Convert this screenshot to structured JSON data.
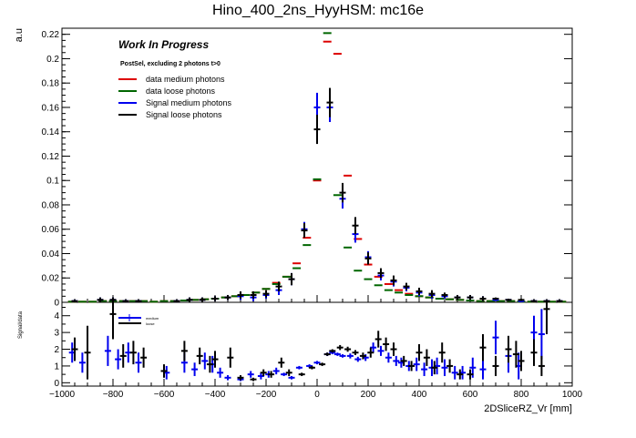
{
  "chart_data": [
    {
      "type": "scatter",
      "title": "Hino_400_2ns_HyyHSM: mc16e",
      "ylabel": "a.u",
      "xlim": [
        -1000,
        1000
      ],
      "ylim": [
        0,
        0.225
      ],
      "yticks": [
        0,
        0.02,
        0.04,
        0.06,
        0.08,
        0.1,
        0.12,
        0.14,
        0.16,
        0.18,
        0.2,
        0.22
      ],
      "ytick_labels": [
        "0",
        "0.02",
        "0.04",
        "0.06",
        "0.08",
        "0.1",
        "0.12",
        "0.14",
        "0.16",
        "0.18",
        "0.2",
        "0.22"
      ],
      "annotations": {
        "work_in_progress": "Work In Progress",
        "selection": "PostSel, excluding 2 photons t>0"
      },
      "legend": {
        "position": "top-left",
        "entries": [
          {
            "label": "data medium photons",
            "color": "#dd0000"
          },
          {
            "label": "data loose photons",
            "color": "#006600"
          },
          {
            "label": "Signal medium photons",
            "color": "#0000ee"
          },
          {
            "label": "Signal loose photons",
            "color": "#000000"
          }
        ]
      },
      "series": [
        {
          "name": "data medium photons",
          "color": "#dd0000",
          "style": "bar",
          "x": [
            -960,
            -920,
            -880,
            -840,
            -800,
            -760,
            -720,
            -680,
            -640,
            -600,
            -560,
            -520,
            -480,
            -440,
            -400,
            -360,
            -320,
            -280,
            -240,
            -200,
            -160,
            -120,
            -80,
            -40,
            0,
            40,
            80,
            120,
            160,
            200,
            240,
            280,
            320,
            360,
            400,
            440,
            480,
            520,
            560,
            600,
            640,
            680,
            720,
            760,
            800,
            840,
            880,
            920,
            960
          ],
          "y": [
            0.0005,
            0.0005,
            0.0005,
            0.001,
            0.001,
            0.001,
            0.001,
            0.001,
            0.0005,
            0.001,
            0.001,
            0.0015,
            0.002,
            0.0025,
            0.003,
            0.004,
            0.005,
            0.006,
            0.008,
            0.011,
            0.016,
            0.021,
            0.032,
            0.053,
            0.1,
            0.214,
            0.204,
            0.104,
            0.052,
            0.031,
            0.021,
            0.015,
            0.01,
            0.007,
            0.005,
            0.004,
            0.003,
            0.0025,
            0.002,
            0.0015,
            0.001,
            0.001,
            0.001,
            0.001,
            0.0005,
            0.0005,
            0.0005,
            0.0005,
            0.0005
          ]
        },
        {
          "name": "data loose photons",
          "color": "#006600",
          "style": "bar",
          "x": [
            -960,
            -920,
            -880,
            -840,
            -800,
            -760,
            -720,
            -680,
            -640,
            -600,
            -560,
            -520,
            -480,
            -440,
            -400,
            -360,
            -320,
            -280,
            -240,
            -200,
            -160,
            -120,
            -80,
            -40,
            0,
            40,
            80,
            120,
            160,
            200,
            240,
            280,
            320,
            360,
            400,
            440,
            480,
            520,
            560,
            600,
            640,
            680,
            720,
            760,
            800,
            840,
            880,
            920,
            960
          ],
          "y": [
            0.0005,
            0.0005,
            0.0005,
            0.001,
            0.001,
            0.001,
            0.001,
            0.001,
            0.0005,
            0.001,
            0.001,
            0.0015,
            0.002,
            0.0025,
            0.003,
            0.004,
            0.005,
            0.006,
            0.008,
            0.011,
            0.015,
            0.021,
            0.028,
            0.047,
            0.101,
            0.221,
            0.088,
            0.045,
            0.026,
            0.019,
            0.014,
            0.01,
            0.008,
            0.006,
            0.005,
            0.004,
            0.003,
            0.0025,
            0.002,
            0.0015,
            0.001,
            0.001,
            0.001,
            0.001,
            0.0005,
            0.0005,
            0.0005,
            0.0005,
            0.0005
          ]
        },
        {
          "name": "Signal medium photons",
          "color": "#0000ee",
          "style": "errorbar",
          "x": [
            -950,
            -850,
            -800,
            -750,
            -700,
            -550,
            -500,
            -450,
            -400,
            -350,
            -300,
            -250,
            -200,
            -150,
            -100,
            -50,
            0,
            50,
            100,
            150,
            200,
            250,
            300,
            350,
            400,
            450,
            500,
            550,
            600,
            650,
            700,
            750,
            800,
            850,
            900,
            950
          ],
          "y": [
            0.001,
            0.002,
            0.002,
            0.001,
            0.001,
            0.001,
            0.002,
            0.002,
            0.003,
            0.004,
            0.005,
            0.004,
            0.006,
            0.01,
            0.019,
            0.06,
            0.16,
            0.16,
            0.085,
            0.056,
            0.037,
            0.022,
            0.017,
            0.012,
            0.008,
            0.006,
            0.005,
            0.004,
            0.004,
            0.003,
            0.002,
            0.002,
            0.001,
            0.001,
            0.001,
            0.001
          ],
          "err": [
            0.001,
            0.002,
            0.002,
            0.001,
            0.001,
            0.001,
            0.002,
            0.002,
            0.002,
            0.002,
            0.003,
            0.003,
            0.003,
            0.004,
            0.005,
            0.006,
            0.012,
            0.012,
            0.008,
            0.007,
            0.005,
            0.004,
            0.004,
            0.003,
            0.003,
            0.003,
            0.002,
            0.002,
            0.002,
            0.002,
            0.001,
            0.001,
            0.001,
            0.001,
            0.001,
            0.001
          ]
        },
        {
          "name": "Signal loose photons",
          "color": "#000000",
          "style": "errorbar",
          "x": [
            -950,
            -850,
            -800,
            -750,
            -700,
            -550,
            -500,
            -450,
            -400,
            -350,
            -300,
            -250,
            -200,
            -150,
            -100,
            -50,
            0,
            50,
            100,
            150,
            200,
            250,
            300,
            350,
            400,
            450,
            500,
            550,
            600,
            650,
            700,
            750,
            800,
            850,
            900,
            950
          ],
          "y": [
            0.001,
            0.002,
            0.002,
            0.001,
            0.001,
            0.001,
            0.002,
            0.002,
            0.003,
            0.004,
            0.006,
            0.006,
            0.007,
            0.013,
            0.019,
            0.059,
            0.142,
            0.164,
            0.09,
            0.063,
            0.036,
            0.024,
            0.018,
            0.013,
            0.009,
            0.007,
            0.006,
            0.004,
            0.004,
            0.003,
            0.003,
            0.002,
            0.002,
            0.001,
            0.001,
            0.001
          ],
          "err": [
            0.001,
            0.002,
            0.002,
            0.001,
            0.001,
            0.001,
            0.002,
            0.002,
            0.002,
            0.002,
            0.003,
            0.003,
            0.003,
            0.004,
            0.005,
            0.006,
            0.012,
            0.012,
            0.008,
            0.007,
            0.005,
            0.004,
            0.004,
            0.003,
            0.003,
            0.003,
            0.002,
            0.002,
            0.002,
            0.002,
            0.001,
            0.001,
            0.001,
            0.001,
            0.001,
            0.001
          ]
        }
      ]
    },
    {
      "type": "scatter",
      "ylabel": "Signal/data",
      "xlabel": "2DSliceRZ_Vr [mm]",
      "xlim": [
        -1000,
        1000
      ],
      "ylim": [
        -0.2,
        4.8
      ],
      "xticks": [
        -1000,
        -800,
        -600,
        -400,
        -200,
        0,
        200,
        400,
        600,
        800,
        1000
      ],
      "xtick_labels": [
        "−1000",
        "−800",
        "−600",
        "−400",
        "−200",
        "0",
        "200",
        "400",
        "600",
        "800",
        "1000"
      ],
      "yticks": [
        0,
        1,
        2,
        3,
        4
      ],
      "ytick_labels": [
        "0",
        "1",
        "2",
        "3",
        "4"
      ],
      "legend": {
        "position": "top-left",
        "entries": [
          {
            "label": "medium",
            "color": "#0000ee"
          },
          {
            "label": "loose",
            "color": "#000000"
          }
        ]
      },
      "series": [
        {
          "name": "medium",
          "color": "#0000ee",
          "x": [
            -960,
            -920,
            -820,
            -780,
            -740,
            -700,
            -590,
            -520,
            -480,
            -440,
            -410,
            -380,
            -350,
            -300,
            -260,
            -220,
            -190,
            -160,
            -130,
            -100,
            -70,
            -30,
            0,
            40,
            60,
            80,
            100,
            130,
            160,
            190,
            220,
            250,
            280,
            310,
            330,
            360,
            390,
            420,
            450,
            470,
            500,
            540,
            570,
            610,
            650,
            700,
            750,
            790,
            850,
            880
          ],
          "y": [
            1.8,
            1.2,
            1.9,
            1.4,
            1.8,
            1.2,
            0.6,
            1.2,
            0.8,
            1.3,
            1.1,
            0.6,
            0.3,
            0.2,
            0.5,
            0.4,
            0.5,
            0.7,
            0.5,
            0.3,
            0.9,
            1.0,
            1.2,
            1.7,
            1.8,
            1.7,
            1.6,
            1.6,
            1.4,
            1.5,
            2.1,
            1.9,
            1.5,
            1.3,
            1.2,
            1.0,
            1.1,
            0.8,
            0.9,
            1.0,
            0.9,
            0.6,
            0.6,
            0.9,
            0.8,
            2.7,
            1.6,
            1.0,
            3.0,
            2.9
          ],
          "err": [
            0.6,
            0.6,
            0.9,
            0.6,
            0.6,
            0.6,
            0.4,
            0.6,
            0.4,
            0.5,
            0.5,
            0.3,
            0.15,
            0.1,
            0.2,
            0.2,
            0.2,
            0.2,
            0.1,
            0.1,
            0.1,
            0.1,
            0.1,
            0.1,
            0.1,
            0.1,
            0.1,
            0.15,
            0.15,
            0.2,
            0.3,
            0.3,
            0.3,
            0.3,
            0.3,
            0.3,
            0.4,
            0.4,
            0.5,
            0.5,
            0.5,
            0.4,
            0.4,
            0.6,
            0.6,
            1.0,
            1.0,
            0.8,
            1.0,
            1.5
          ]
        },
        {
          "name": "loose",
          "color": "#000000",
          "x": [
            -950,
            -900,
            -800,
            -760,
            -720,
            -680,
            -600,
            -520,
            -460,
            -420,
            -400,
            -340,
            -300,
            -250,
            -210,
            -180,
            -140,
            -110,
            -60,
            -20,
            20,
            40,
            60,
            90,
            120,
            150,
            180,
            210,
            240,
            270,
            300,
            340,
            370,
            400,
            430,
            460,
            490,
            520,
            560,
            600,
            650,
            700,
            750,
            780,
            800,
            850,
            880,
            900
          ],
          "y": [
            2.0,
            1.8,
            4.1,
            1.6,
            1.8,
            1.5,
            0.7,
            1.9,
            1.6,
            1.1,
            1.4,
            1.5,
            0.3,
            0.2,
            0.6,
            0.5,
            1.2,
            0.6,
            0.5,
            0.9,
            1.1,
            1.7,
            1.9,
            2.1,
            2.0,
            1.8,
            1.6,
            1.8,
            2.6,
            2.3,
            2.0,
            1.3,
            1.0,
            1.8,
            1.5,
            0.9,
            1.8,
            1.0,
            0.5,
            0.5,
            2.1,
            1.0,
            2.0,
            1.7,
            1.3,
            1.8,
            1.0,
            4.4
          ],
          "err": [
            0.7,
            1.6,
            1.5,
            0.7,
            0.7,
            0.6,
            0.4,
            0.6,
            0.5,
            0.5,
            0.5,
            0.6,
            0.15,
            0.1,
            0.2,
            0.2,
            0.3,
            0.2,
            0.1,
            0.1,
            0.1,
            0.1,
            0.1,
            0.15,
            0.15,
            0.15,
            0.2,
            0.3,
            0.5,
            0.4,
            0.4,
            0.3,
            0.3,
            0.5,
            0.5,
            0.4,
            0.6,
            0.4,
            0.3,
            0.3,
            0.8,
            0.6,
            0.8,
            0.8,
            0.6,
            0.8,
            0.6,
            1.5
          ]
        }
      ]
    }
  ]
}
